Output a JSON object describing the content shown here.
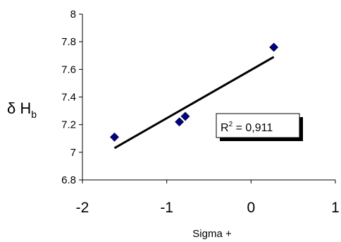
{
  "chart_data": {
    "type": "scatter",
    "title": "",
    "xlabel": "Sigma +",
    "ylabel": {
      "main": "δ H",
      "subscript": "b"
    },
    "xlim": [
      -2,
      1
    ],
    "ylim": [
      6.8,
      8.0
    ],
    "x_ticks": [
      -2,
      -1,
      0,
      1
    ],
    "x_tick_labels": [
      "-2",
      "-1",
      "0",
      "1"
    ],
    "y_ticks": [
      6.8,
      7.0,
      7.2,
      7.4,
      7.6,
      7.8,
      8.0
    ],
    "y_tick_labels": [
      "6.8",
      "7",
      "7.2",
      "7.4",
      "7.6",
      "7.8",
      "8"
    ],
    "grid": false,
    "series": [
      {
        "points": [
          {
            "x": -1.62,
            "y": 7.11
          },
          {
            "x": -0.85,
            "y": 7.22
          },
          {
            "x": -0.78,
            "y": 7.26
          },
          {
            "x": 0.27,
            "y": 7.76
          }
        ],
        "marker": "diamond",
        "color": "#00008B"
      }
    ],
    "trendline": {
      "x": [
        -1.62,
        0.27
      ],
      "y": [
        7.03,
        7.69
      ],
      "color": "#000000"
    },
    "annotation": {
      "base": "R",
      "superscript": "2",
      "rest": " = 0,911"
    }
  }
}
